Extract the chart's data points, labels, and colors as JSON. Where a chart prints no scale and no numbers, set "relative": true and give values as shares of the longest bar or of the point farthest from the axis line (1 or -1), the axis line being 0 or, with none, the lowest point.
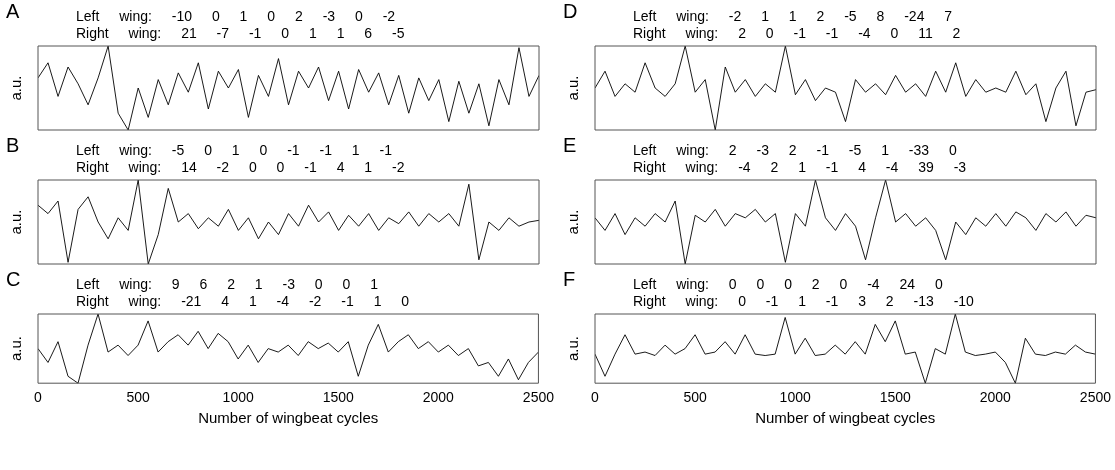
{
  "chart_data": [
    {
      "type": "line",
      "title": "A",
      "ylabel": "a.u.",
      "relative": true,
      "color": "#000000",
      "marker": "none",
      "tick_labels": false,
      "xlim": [
        0,
        2500
      ],
      "xticks": [
        0,
        500,
        1000,
        1500,
        2000,
        2500
      ],
      "annotations": [
        "Left wing: -10 0 1 0 2 -3 0 -2",
        "Right wing: 21 -7 -1 0 1 1 6 -5"
      ],
      "x": [
        0,
        50,
        100,
        150,
        200,
        250,
        300,
        350,
        400,
        450,
        500,
        550,
        600,
        650,
        700,
        750,
        800,
        850,
        900,
        950,
        1000,
        1050,
        1100,
        1150,
        1200,
        1250,
        1300,
        1350,
        1400,
        1450,
        1500,
        1550,
        1600,
        1650,
        1700,
        1750,
        1800,
        1850,
        1900,
        1950,
        2000,
        2050,
        2100,
        2150,
        2200,
        2250,
        2300,
        2350,
        2400,
        2450,
        2500
      ],
      "values": [
        0.62,
        0.8,
        0.4,
        0.75,
        0.55,
        0.3,
        0.62,
        1.0,
        0.2,
        0.0,
        0.5,
        0.15,
        0.6,
        0.3,
        0.68,
        0.45,
        0.8,
        0.25,
        0.7,
        0.5,
        0.72,
        0.15,
        0.65,
        0.4,
        0.85,
        0.3,
        0.7,
        0.5,
        0.75,
        0.35,
        0.7,
        0.25,
        0.72,
        0.45,
        0.68,
        0.3,
        0.65,
        0.2,
        0.62,
        0.35,
        0.6,
        0.1,
        0.58,
        0.2,
        0.55,
        0.05,
        0.6,
        0.3,
        0.98,
        0.4,
        0.65
      ]
    },
    {
      "type": "line",
      "title": "B",
      "ylabel": "a.u.",
      "relative": true,
      "color": "#000000",
      "marker": "none",
      "tick_labels": false,
      "xlim": [
        0,
        2500
      ],
      "xticks": [
        0,
        500,
        1000,
        1500,
        2000,
        2500
      ],
      "annotations": [
        "Left wing: -5 0 1 0 -1 -1 1 -1",
        "Right wing: 14 -2 0 0 -1 4 1 -2"
      ],
      "x": [
        0,
        50,
        100,
        150,
        200,
        250,
        300,
        350,
        400,
        450,
        500,
        550,
        600,
        650,
        700,
        750,
        800,
        850,
        900,
        950,
        1000,
        1050,
        1100,
        1150,
        1200,
        1250,
        1300,
        1350,
        1400,
        1450,
        1500,
        1550,
        1600,
        1650,
        1700,
        1750,
        1800,
        1850,
        1900,
        1950,
        2000,
        2050,
        2100,
        2150,
        2200,
        2250,
        2300,
        2350,
        2400,
        2450,
        2500
      ],
      "values": [
        0.7,
        0.6,
        0.75,
        0.02,
        0.65,
        0.8,
        0.5,
        0.3,
        0.55,
        0.4,
        1.0,
        0.0,
        0.35,
        0.9,
        0.5,
        0.6,
        0.42,
        0.55,
        0.45,
        0.65,
        0.4,
        0.55,
        0.3,
        0.5,
        0.35,
        0.6,
        0.45,
        0.7,
        0.5,
        0.62,
        0.4,
        0.58,
        0.45,
        0.6,
        0.4,
        0.55,
        0.48,
        0.62,
        0.45,
        0.6,
        0.5,
        0.6,
        0.45,
        0.95,
        0.05,
        0.5,
        0.4,
        0.55,
        0.45,
        0.5,
        0.52
      ]
    },
    {
      "type": "line",
      "title": "C",
      "ylabel": "a.u.",
      "xlabel": "Number of wingbeat cycles",
      "relative": true,
      "color": "#000000",
      "marker": "none",
      "xlim": [
        0,
        2500
      ],
      "xticks": [
        0,
        500,
        1000,
        1500,
        2000,
        2500
      ],
      "annotations": [
        "Left wing: 9 6 2 1 -3 0 0 1",
        "Right wing: -21 4 1 -4 -2 -1 1 0"
      ],
      "x": [
        0,
        50,
        100,
        150,
        200,
        250,
        300,
        350,
        400,
        450,
        500,
        550,
        600,
        650,
        700,
        750,
        800,
        850,
        900,
        950,
        1000,
        1050,
        1100,
        1150,
        1200,
        1250,
        1300,
        1350,
        1400,
        1450,
        1500,
        1550,
        1600,
        1650,
        1700,
        1750,
        1800,
        1850,
        1900,
        1950,
        2000,
        2050,
        2100,
        2150,
        2200,
        2250,
        2300,
        2350,
        2400,
        2450,
        2500
      ],
      "values": [
        0.5,
        0.3,
        0.6,
        0.1,
        0.0,
        0.55,
        1.0,
        0.45,
        0.55,
        0.4,
        0.55,
        0.9,
        0.45,
        0.6,
        0.7,
        0.55,
        0.75,
        0.5,
        0.72,
        0.6,
        0.35,
        0.55,
        0.3,
        0.5,
        0.45,
        0.55,
        0.4,
        0.6,
        0.5,
        0.58,
        0.45,
        0.6,
        0.1,
        0.55,
        0.85,
        0.45,
        0.6,
        0.7,
        0.5,
        0.6,
        0.45,
        0.55,
        0.4,
        0.5,
        0.25,
        0.3,
        0.1,
        0.35,
        0.05,
        0.3,
        0.45
      ]
    },
    {
      "type": "line",
      "title": "D",
      "ylabel": "a.u.",
      "relative": true,
      "color": "#000000",
      "marker": "none",
      "tick_labels": false,
      "xlim": [
        0,
        2500
      ],
      "xticks": [
        0,
        500,
        1000,
        1500,
        2000,
        2500
      ],
      "annotations": [
        "Left wing: -2 1 1 2 -5 8 -24 7",
        "Right wing: 2 0 -1 -1 -4 0 11 2"
      ],
      "x": [
        0,
        50,
        100,
        150,
        200,
        250,
        300,
        350,
        400,
        450,
        500,
        550,
        600,
        650,
        700,
        750,
        800,
        850,
        900,
        950,
        1000,
        1050,
        1100,
        1150,
        1200,
        1250,
        1300,
        1350,
        1400,
        1450,
        1500,
        1550,
        1600,
        1650,
        1700,
        1750,
        1800,
        1850,
        1900,
        1950,
        2000,
        2050,
        2100,
        2150,
        2200,
        2250,
        2300,
        2350,
        2400,
        2450,
        2500
      ],
      "values": [
        0.5,
        0.7,
        0.4,
        0.55,
        0.45,
        0.8,
        0.5,
        0.4,
        0.55,
        1.0,
        0.45,
        0.6,
        0.0,
        0.75,
        0.45,
        0.6,
        0.4,
        0.55,
        0.45,
        1.0,
        0.42,
        0.6,
        0.35,
        0.5,
        0.45,
        0.1,
        0.6,
        0.45,
        0.55,
        0.42,
        0.65,
        0.45,
        0.55,
        0.4,
        0.7,
        0.45,
        0.8,
        0.4,
        0.6,
        0.45,
        0.5,
        0.45,
        0.7,
        0.42,
        0.55,
        0.1,
        0.5,
        0.7,
        0.05,
        0.45,
        0.48
      ]
    },
    {
      "type": "line",
      "title": "E",
      "ylabel": "a.u.",
      "relative": true,
      "color": "#000000",
      "marker": "none",
      "tick_labels": false,
      "xlim": [
        0,
        2500
      ],
      "xticks": [
        0,
        500,
        1000,
        1500,
        2000,
        2500
      ],
      "annotations": [
        "Left wing: 2 -3 2 -1 -5 1 -33 0",
        "Right wing: -4 2 1 -1 4 -4 39 -3"
      ],
      "x": [
        0,
        50,
        100,
        150,
        200,
        250,
        300,
        350,
        400,
        450,
        500,
        550,
        600,
        650,
        700,
        750,
        800,
        850,
        900,
        950,
        1000,
        1050,
        1100,
        1150,
        1200,
        1250,
        1300,
        1350,
        1400,
        1450,
        1500,
        1550,
        1600,
        1650,
        1700,
        1750,
        1800,
        1850,
        1900,
        1950,
        2000,
        2050,
        2100,
        2150,
        2200,
        2250,
        2300,
        2350,
        2400,
        2450,
        2500
      ],
      "values": [
        0.55,
        0.4,
        0.6,
        0.35,
        0.55,
        0.45,
        0.6,
        0.5,
        0.75,
        0.0,
        0.58,
        0.5,
        0.65,
        0.45,
        0.6,
        0.55,
        0.65,
        0.5,
        0.6,
        0.02,
        0.6,
        0.45,
        1.0,
        0.55,
        0.4,
        0.6,
        0.45,
        0.05,
        0.55,
        1.0,
        0.5,
        0.6,
        0.45,
        0.55,
        0.4,
        0.05,
        0.5,
        0.35,
        0.55,
        0.45,
        0.6,
        0.45,
        0.62,
        0.55,
        0.4,
        0.6,
        0.5,
        0.62,
        0.45,
        0.58,
        0.55
      ]
    },
    {
      "type": "line",
      "title": "F",
      "ylabel": "a.u.",
      "xlabel": "Number of wingbeat cycles",
      "relative": true,
      "color": "#000000",
      "marker": "none",
      "xlim": [
        0,
        2500
      ],
      "xticks": [
        0,
        500,
        1000,
        1500,
        2000,
        2500
      ],
      "annotations": [
        "Left wing: 0 0 0 2 0 -4 24 0",
        "Right wing: 0 -1 1 -1 3 2 -13 -10"
      ],
      "x": [
        0,
        50,
        100,
        150,
        200,
        250,
        300,
        350,
        400,
        450,
        500,
        550,
        600,
        650,
        700,
        750,
        800,
        850,
        900,
        950,
        1000,
        1050,
        1100,
        1150,
        1200,
        1250,
        1300,
        1350,
        1400,
        1450,
        1500,
        1550,
        1600,
        1650,
        1700,
        1750,
        1800,
        1850,
        1900,
        1950,
        2000,
        2050,
        2100,
        2150,
        2200,
        2250,
        2300,
        2350,
        2400,
        2450,
        2500
      ],
      "values": [
        0.42,
        0.1,
        0.42,
        0.7,
        0.42,
        0.45,
        0.4,
        0.55,
        0.42,
        0.5,
        0.7,
        0.42,
        0.45,
        0.6,
        0.42,
        0.7,
        0.42,
        0.4,
        0.42,
        0.95,
        0.42,
        0.65,
        0.4,
        0.42,
        0.55,
        0.42,
        0.6,
        0.42,
        0.85,
        0.6,
        0.9,
        0.42,
        0.45,
        0.0,
        0.5,
        0.42,
        1.0,
        0.45,
        0.4,
        0.42,
        0.45,
        0.3,
        0.0,
        0.65,
        0.42,
        0.4,
        0.45,
        0.42,
        0.55,
        0.45,
        0.42
      ]
    }
  ]
}
